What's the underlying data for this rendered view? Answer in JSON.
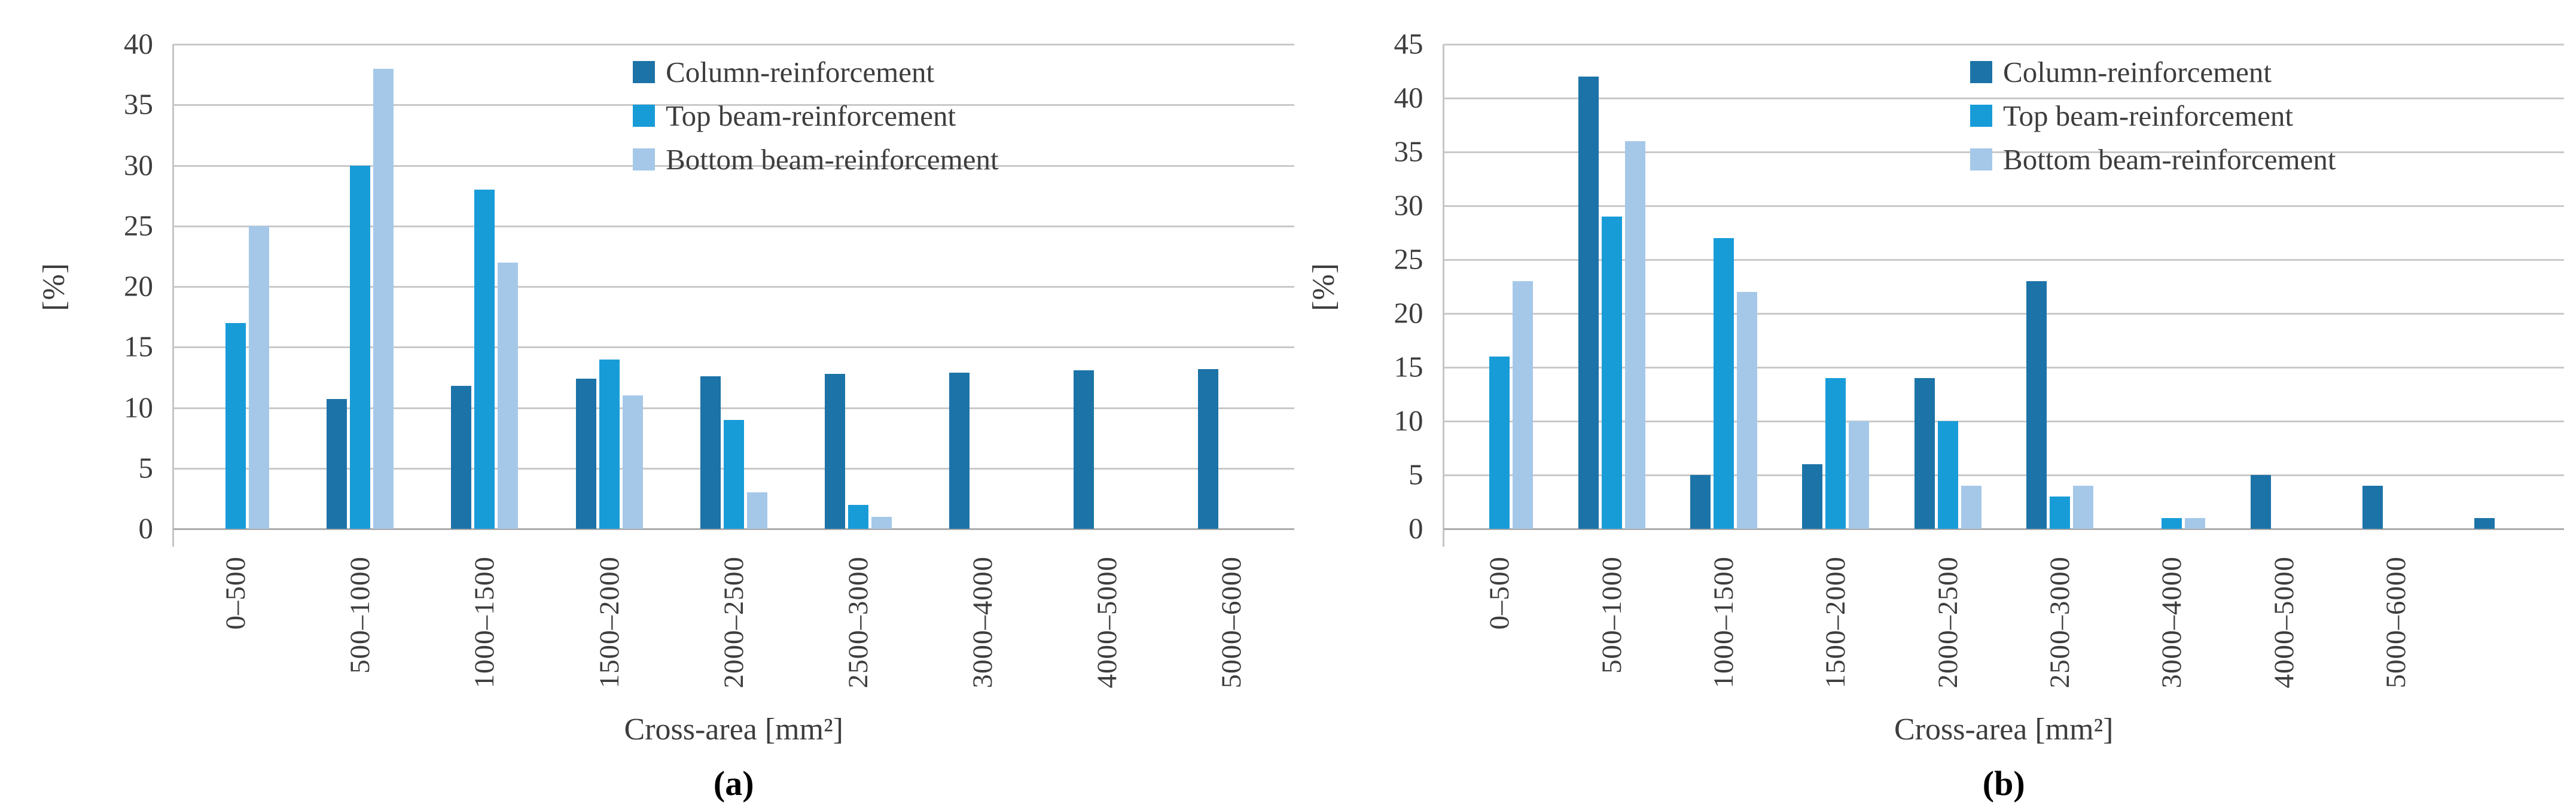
{
  "figure": {
    "background_color": "#ffffff",
    "text_color": "#3d3d3d",
    "grid_color": "#c9c9c9",
    "axis_color": "#c5c5c5",
    "series": [
      {
        "key": "column-reinforcement",
        "label": "Column-reinforcement",
        "color": "#1c73a8"
      },
      {
        "key": "top-beam-reinforcement",
        "label": "Top beam-reinforcement",
        "color": "#189cd8"
      },
      {
        "key": "bottom-beam-reinforcement",
        "label": "Bottom beam-reinforcement",
        "color": "#a5c8e9"
      }
    ]
  },
  "chart_data": [
    {
      "id": "a",
      "type": "bar",
      "caption": "(a)",
      "ylabel": "[%]",
      "xlabel": "Cross-area [mm²]",
      "ylim": [
        0,
        40
      ],
      "ytick_step": 5,
      "grid": true,
      "legend_position": "top-right-inside",
      "legend": [
        "Column-reinforcement",
        "Top beam-reinforcement",
        "Bottom beam-reinforcement"
      ],
      "categories": [
        "0–500",
        "500–1000",
        "1000–1500",
        "1500–2000",
        "2000–2500",
        "2500–3000",
        "3000–4000",
        "4000–5000",
        "5000–6000"
      ],
      "series": [
        {
          "name": "Column-reinforcement",
          "values": [
            0,
            10.7,
            11.8,
            12.4,
            12.6,
            12.8,
            12.9,
            13.1,
            13.2
          ]
        },
        {
          "name": "Top beam-reinforcement",
          "values": [
            17,
            30,
            28,
            14,
            9,
            2,
            0,
            0,
            0
          ]
        },
        {
          "name": "Bottom beam-reinforcement",
          "values": [
            25,
            38,
            22,
            11,
            3,
            1,
            0,
            0,
            0
          ]
        }
      ]
    },
    {
      "id": "b",
      "type": "bar",
      "caption": "(b)",
      "ylabel": "[%]",
      "xlabel": "Cross-area [mm²]",
      "ylim": [
        0,
        45
      ],
      "ytick_step": 5,
      "grid": true,
      "legend_position": "top-right-inside",
      "legend": [
        "Column-reinforcement",
        "Top beam-reinforcement",
        "Bottom beam-reinforcement"
      ],
      "categories": [
        "0–500",
        "500–1000",
        "1000–1500",
        "1500–2000",
        "2000–2500",
        "2500–3000",
        "3000–4000",
        "4000–5000",
        "5000–6000",
        ""
      ],
      "series": [
        {
          "name": "Column-reinforcement",
          "values": [
            0,
            42,
            5,
            6,
            14,
            23,
            0,
            5,
            4,
            1
          ]
        },
        {
          "name": "Top beam-reinforcement",
          "values": [
            16,
            29,
            27,
            14,
            10,
            3,
            1,
            0,
            0,
            0
          ]
        },
        {
          "name": "Bottom beam-reinforcement",
          "values": [
            23,
            36,
            22,
            10,
            4,
            4,
            1,
            0,
            0,
            0
          ]
        }
      ]
    }
  ]
}
